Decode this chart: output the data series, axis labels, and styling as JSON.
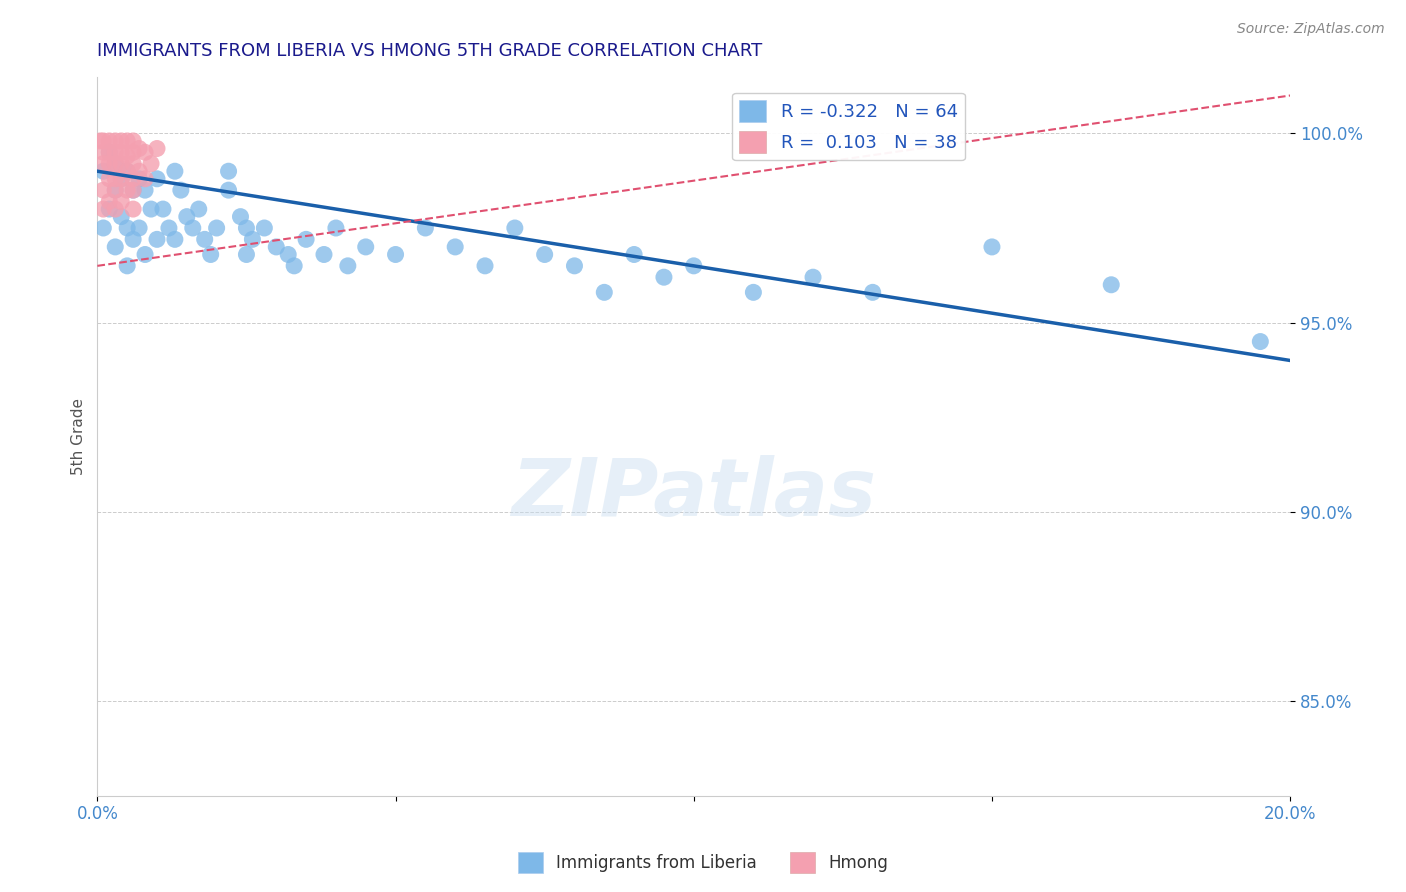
{
  "title": "IMMIGRANTS FROM LIBERIA VS HMONG 5TH GRADE CORRELATION CHART",
  "source": "Source: ZipAtlas.com",
  "xlabel": "",
  "ylabel": "5th Grade",
  "xlim": [
    0.0,
    0.2
  ],
  "ylim": [
    0.825,
    1.015
  ],
  "yticks": [
    0.85,
    0.9,
    0.95,
    1.0
  ],
  "ytick_labels": [
    "85.0%",
    "90.0%",
    "95.0%",
    "100.0%"
  ],
  "xticks": [
    0.0,
    0.05,
    0.1,
    0.15,
    0.2
  ],
  "xtick_labels": [
    "0.0%",
    "",
    "",
    "",
    "20.0%"
  ],
  "legend_liberia_R": "-0.322",
  "legend_liberia_N": "64",
  "legend_hmong_R": "0.103",
  "legend_hmong_N": "38",
  "legend_label_liberia": "Immigrants from Liberia",
  "legend_label_hmong": "Hmong",
  "liberia_color": "#7eb8e8",
  "hmong_color": "#f4a0b0",
  "trendline_liberia_color": "#1a5faa",
  "trendline_hmong_color": "#e05070",
  "background_color": "#ffffff",
  "grid_color": "#cccccc",
  "title_color": "#1a1a8c",
  "axis_label_color": "#555555",
  "tick_label_color": "#4488cc",
  "watermark": "ZIPatlas",
  "trendline_liberia_x0": 0.0,
  "trendline_liberia_y0": 0.99,
  "trendline_liberia_x1": 0.2,
  "trendline_liberia_y1": 0.94,
  "trendline_hmong_x0": 0.0,
  "trendline_hmong_y0": 0.965,
  "trendline_hmong_x1": 0.2,
  "trendline_hmong_y1": 1.01,
  "liberia_x": [
    0.001,
    0.001,
    0.002,
    0.002,
    0.003,
    0.003,
    0.003,
    0.004,
    0.004,
    0.005,
    0.005,
    0.005,
    0.006,
    0.006,
    0.007,
    0.007,
    0.008,
    0.008,
    0.009,
    0.01,
    0.01,
    0.011,
    0.012,
    0.013,
    0.013,
    0.014,
    0.015,
    0.016,
    0.017,
    0.018,
    0.019,
    0.02,
    0.022,
    0.022,
    0.024,
    0.025,
    0.025,
    0.026,
    0.028,
    0.03,
    0.032,
    0.033,
    0.035,
    0.038,
    0.04,
    0.042,
    0.045,
    0.05,
    0.055,
    0.06,
    0.065,
    0.07,
    0.075,
    0.08,
    0.085,
    0.09,
    0.095,
    0.1,
    0.11,
    0.12,
    0.13,
    0.15,
    0.17,
    0.195
  ],
  "liberia_y": [
    0.99,
    0.975,
    0.995,
    0.98,
    0.992,
    0.985,
    0.97,
    0.988,
    0.978,
    0.99,
    0.975,
    0.965,
    0.985,
    0.972,
    0.988,
    0.975,
    0.985,
    0.968,
    0.98,
    0.988,
    0.972,
    0.98,
    0.975,
    0.99,
    0.972,
    0.985,
    0.978,
    0.975,
    0.98,
    0.972,
    0.968,
    0.975,
    0.99,
    0.985,
    0.978,
    0.975,
    0.968,
    0.972,
    0.975,
    0.97,
    0.968,
    0.965,
    0.972,
    0.968,
    0.975,
    0.965,
    0.97,
    0.968,
    0.975,
    0.97,
    0.965,
    0.975,
    0.968,
    0.965,
    0.958,
    0.968,
    0.962,
    0.965,
    0.958,
    0.962,
    0.958,
    0.97,
    0.96,
    0.945
  ],
  "hmong_x": [
    0.0005,
    0.001,
    0.001,
    0.001,
    0.001,
    0.001,
    0.002,
    0.002,
    0.002,
    0.002,
    0.002,
    0.003,
    0.003,
    0.003,
    0.003,
    0.003,
    0.003,
    0.004,
    0.004,
    0.004,
    0.004,
    0.004,
    0.005,
    0.005,
    0.005,
    0.005,
    0.006,
    0.006,
    0.006,
    0.006,
    0.006,
    0.006,
    0.007,
    0.007,
    0.008,
    0.008,
    0.009,
    0.01
  ],
  "hmong_y": [
    0.998,
    0.998,
    0.995,
    0.992,
    0.985,
    0.98,
    0.998,
    0.995,
    0.992,
    0.988,
    0.982,
    0.998,
    0.995,
    0.992,
    0.988,
    0.985,
    0.98,
    0.998,
    0.995,
    0.992,
    0.988,
    0.982,
    0.998,
    0.994,
    0.99,
    0.985,
    0.998,
    0.995,
    0.992,
    0.988,
    0.985,
    0.98,
    0.996,
    0.99,
    0.995,
    0.988,
    0.992,
    0.996
  ]
}
